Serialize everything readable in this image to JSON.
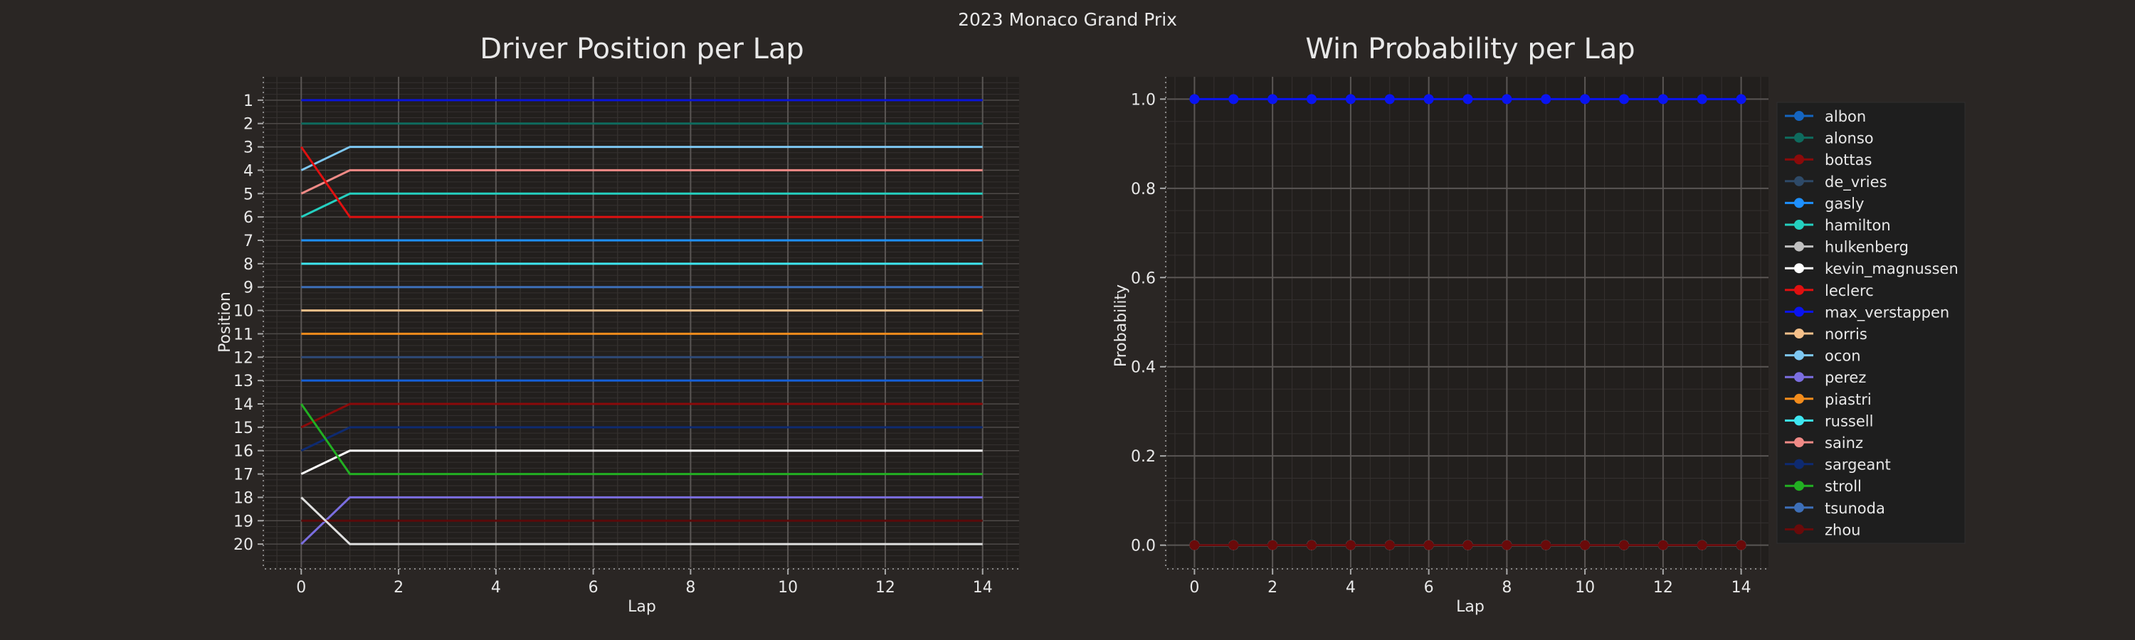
{
  "suptitle": "2023 Monaco Grand Prix",
  "chart_data": [
    {
      "type": "line",
      "title": "Driver Position per Lap",
      "xlabel": "Lap",
      "ylabel": "Position",
      "x": [
        0,
        1,
        2,
        3,
        4,
        5,
        6,
        7,
        8,
        9,
        10,
        11,
        12,
        13,
        14
      ],
      "xticks": [
        0,
        2,
        4,
        6,
        8,
        10,
        12,
        14
      ],
      "xlim": [
        -0.75,
        14.75
      ],
      "yticks": [
        1,
        2,
        3,
        4,
        5,
        6,
        7,
        8,
        9,
        10,
        11,
        12,
        13,
        14,
        15,
        16,
        17,
        18,
        19,
        20
      ],
      "ylim": [
        21,
        0
      ],
      "y_inverted": true,
      "grid": true,
      "series": [
        {
          "name": "max_verstappen",
          "color": "#0a14d8",
          "start": 1,
          "end": 1
        },
        {
          "name": "alonso",
          "color": "#0e6b5e",
          "start": 2,
          "end": 2
        },
        {
          "name": "ocon",
          "color": "#7ec8f2",
          "start": 4,
          "end": 3
        },
        {
          "name": "sainz",
          "color": "#f08a86",
          "start": 5,
          "end": 4
        },
        {
          "name": "hamilton",
          "color": "#25d0c0",
          "start": 6,
          "end": 5
        },
        {
          "name": "leclerc",
          "color": "#e01010",
          "start": 3,
          "end": 6
        },
        {
          "name": "gasly",
          "color": "#1e90ff",
          "start": 7,
          "end": 7
        },
        {
          "name": "russell",
          "color": "#3ee6f0",
          "start": 8,
          "end": 8
        },
        {
          "name": "tsunoda",
          "color": "#3d6fb8",
          "start": 9,
          "end": 9
        },
        {
          "name": "norris",
          "color": "#f5c08a",
          "start": 10,
          "end": 10
        },
        {
          "name": "piastri",
          "color": "#f28c1c",
          "start": 11,
          "end": 11
        },
        {
          "name": "de_vries",
          "color": "#2e4a78",
          "start": 12,
          "end": 12
        },
        {
          "name": "albon",
          "color": "#1560d8",
          "start": 13,
          "end": 13
        },
        {
          "name": "bottas",
          "color": "#8b0a0a",
          "start": 15,
          "end": 14
        },
        {
          "name": "sargeant",
          "color": "#0e2a70",
          "start": 16,
          "end": 15
        },
        {
          "name": "kevin_magnussen",
          "color": "#ffffff",
          "start": 17,
          "end": 16
        },
        {
          "name": "stroll",
          "color": "#22b022",
          "start": 14,
          "end": 17
        },
        {
          "name": "perez",
          "color": "#7b6ee0",
          "start": 20,
          "end": 18
        },
        {
          "name": "zhou",
          "color": "#5a0a0a",
          "start": 19,
          "end": 19
        },
        {
          "name": "hulkenberg",
          "color": "#e0e0e0",
          "start": 18,
          "end": 20
        }
      ]
    },
    {
      "type": "line",
      "title": "Win Probability per Lap",
      "xlabel": "Lap",
      "ylabel": "Probability",
      "x": [
        0,
        1,
        2,
        3,
        4,
        5,
        6,
        7,
        8,
        9,
        10,
        11,
        12,
        13,
        14
      ],
      "xticks": [
        0,
        2,
        4,
        6,
        8,
        10,
        12,
        14
      ],
      "xlim": [
        -0.7,
        14.7
      ],
      "yticks": [
        0.0,
        0.2,
        0.4,
        0.6,
        0.8,
        1.0
      ],
      "ylim": [
        -0.05,
        1.05
      ],
      "grid": true,
      "legend_position": "outside-right",
      "series": [
        {
          "name": "albon",
          "color": "#1565c0",
          "value": 0.0
        },
        {
          "name": "alonso",
          "color": "#0e6b5e",
          "value": 0.0
        },
        {
          "name": "bottas",
          "color": "#8b0a0a",
          "value": 0.0
        },
        {
          "name": "de_vries",
          "color": "#2e4a68",
          "value": 0.0
        },
        {
          "name": "gasly",
          "color": "#1e90ff",
          "value": 0.0
        },
        {
          "name": "hamilton",
          "color": "#25d0c0",
          "value": 0.0
        },
        {
          "name": "hulkenberg",
          "color": "#c0c0c0",
          "value": 0.0
        },
        {
          "name": "kevin_magnussen",
          "color": "#ffffff",
          "value": 0.0
        },
        {
          "name": "leclerc",
          "color": "#e01010",
          "value": 0.0
        },
        {
          "name": "max_verstappen",
          "color": "#0a14f0",
          "value": 1.0
        },
        {
          "name": "norris",
          "color": "#f5c08a",
          "value": 0.0
        },
        {
          "name": "ocon",
          "color": "#7ec8f2",
          "value": 0.0
        },
        {
          "name": "perez",
          "color": "#7b6ee0",
          "value": 0.0
        },
        {
          "name": "piastri",
          "color": "#f28c1c",
          "value": 0.0
        },
        {
          "name": "russell",
          "color": "#3ee6f0",
          "value": 0.0
        },
        {
          "name": "sainz",
          "color": "#f08a86",
          "value": 0.0
        },
        {
          "name": "sargeant",
          "color": "#0e2a70",
          "value": 0.0
        },
        {
          "name": "stroll",
          "color": "#22b022",
          "value": 0.0
        },
        {
          "name": "tsunoda",
          "color": "#3d6fb8",
          "value": 0.0
        },
        {
          "name": "zhou",
          "color": "#6a0a0a",
          "value": 0.0
        }
      ]
    }
  ]
}
